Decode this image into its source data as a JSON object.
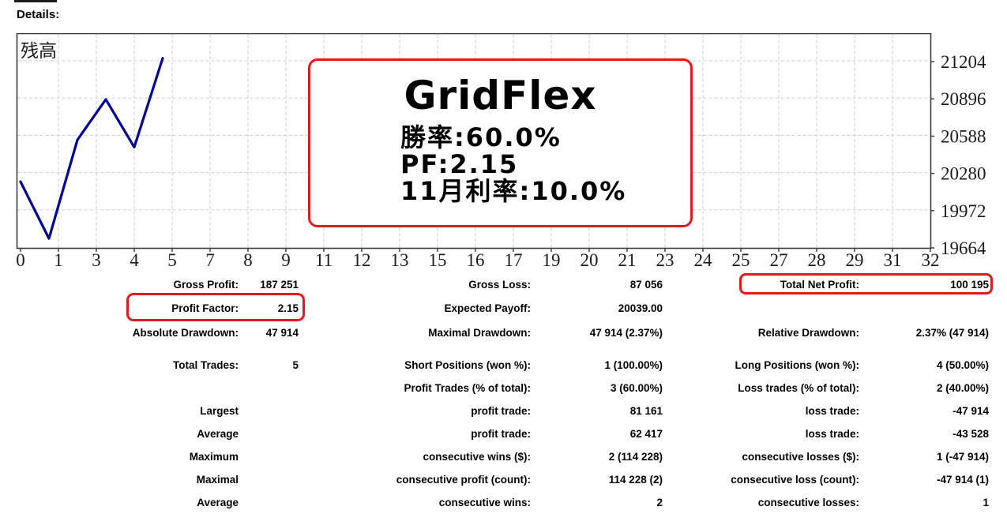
{
  "page": {
    "details_label": "Details:",
    "background": "#ffffff"
  },
  "chart": {
    "balance_label": "残高",
    "line_color": "#00009a",
    "grid_color": "#cdcdcd",
    "axis_color": "#3c3c3c",
    "tick_label_color": "#1c1c1c",
    "y_tick_labels": [
      "21204",
      "20896",
      "20588",
      "20280",
      "19972",
      "19664"
    ],
    "x_tick_labels": [
      "0",
      "1",
      "3",
      "4",
      "5",
      "7",
      "8",
      "9",
      "11",
      "12",
      "13",
      "15",
      "16",
      "17",
      "19",
      "20",
      "21",
      "23",
      "24",
      "25",
      "27",
      "28",
      "29",
      "31",
      "32"
    ],
    "annotation": {
      "title": "GridFlex",
      "lines": [
        "勝率:60.0%",
        "PF:2.15",
        "11月利率:10.0%"
      ],
      "border_color": "#e01b1b",
      "text_color": "#000000"
    }
  },
  "chart_data": {
    "type": "line",
    "title": "残高 (account balance curve)",
    "x": [
      0,
      1,
      2,
      3,
      4,
      5
    ],
    "series": [
      {
        "name": "残高",
        "values": [
          20205,
          19735,
          20550,
          20885,
          20490,
          21225
        ]
      }
    ],
    "xlabel": "",
    "ylabel": "",
    "y_ticks": [
      21204,
      20896,
      20588,
      20280,
      19972,
      19664
    ],
    "x_tick_labels": [
      "0",
      "1",
      "3",
      "4",
      "5",
      "7",
      "8",
      "9",
      "11",
      "12",
      "13",
      "15",
      "16",
      "17",
      "19",
      "20",
      "21",
      "23",
      "24",
      "25",
      "27",
      "28",
      "29",
      "31",
      "32"
    ],
    "xlim": [
      0,
      32
    ],
    "ylim": [
      19620,
      21290
    ],
    "grid": true,
    "legend_position": "none",
    "annotations": [
      "GridFlex",
      "勝率:60.0%",
      "PF:2.15",
      "11月利率:10.0%"
    ]
  },
  "stats": {
    "highlight_color": "#e01b1b",
    "highlighted": [
      "Profit Factor",
      "Total Net Profit"
    ],
    "rows": [
      {
        "cells": [
          "Gross Profit:",
          "187 251",
          "Gross Loss:",
          "87 056",
          "Total Net Profit:",
          "100 195"
        ]
      },
      {
        "cells": [
          "Profit Factor:",
          "2.15",
          "Expected Payoff:",
          "20039.00",
          "",
          ""
        ]
      },
      {
        "cells": [
          "Absolute Drawdown:",
          "47 914",
          "Maximal Drawdown:",
          "47 914 (2.37%)",
          "Relative Drawdown:",
          "2.37% (47 914)"
        ]
      },
      {
        "cells": [
          "Total Trades:",
          "5",
          "Short Positions (won %):",
          "1 (100.00%)",
          "Long Positions (won %):",
          "4 (50.00%)"
        ]
      },
      {
        "cells": [
          "",
          "",
          "Profit Trades (% of total):",
          "3 (60.00%)",
          "Loss trades (% of total):",
          "2 (40.00%)"
        ]
      },
      {
        "cells": [
          "Largest",
          "",
          "profit trade:",
          "81 161",
          "loss trade:",
          "-47 914"
        ]
      },
      {
        "cells": [
          "Average",
          "",
          "profit trade:",
          "62 417",
          "loss trade:",
          "-43 528"
        ]
      },
      {
        "cells": [
          "Maximum",
          "",
          "consecutive wins ($):",
          "2 (114 228)",
          "consecutive losses ($):",
          "1 (-47 914)"
        ]
      },
      {
        "cells": [
          "Maximal",
          "",
          "consecutive profit (count):",
          "114 228 (2)",
          "consecutive loss (count):",
          "-47 914 (1)"
        ]
      },
      {
        "cells": [
          "Average",
          "",
          "consecutive wins:",
          "2",
          "consecutive losses:",
          "1"
        ]
      }
    ]
  }
}
